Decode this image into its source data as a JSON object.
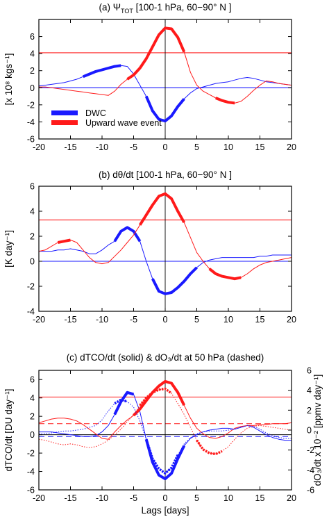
{
  "colors": {
    "blue": "#1a1aff",
    "red": "#ff1a1a",
    "black": "#000000"
  },
  "chart_data": [
    {
      "type": "line",
      "title": "(a) Ψ",
      "title_sub": "TOT",
      "title_rest": " [100-1 hPa, 60−90° N ]",
      "ylabel": "[x 10⁸ kgs⁻¹]",
      "xlabel": "",
      "xlim": [
        -20,
        20
      ],
      "ylim": [
        -6,
        8
      ],
      "xticks": [
        "-20",
        "-15",
        "-10",
        "-5",
        "0",
        "5",
        "10",
        "15",
        "20"
      ],
      "yticks": [
        "-6",
        "-4",
        "-2",
        "0",
        "2",
        "4",
        "6"
      ],
      "hlines": [
        {
          "y": 4.1,
          "color": "red"
        },
        {
          "y": 0,
          "color": "blue"
        }
      ],
      "legend": {
        "placement": "lower-left",
        "entries": [
          {
            "label": "DWC",
            "color": "blue"
          },
          {
            "label": "Upward wave event",
            "color": "red"
          }
        ]
      },
      "series": [
        {
          "color": "blue",
          "x": [
            -20,
            -19,
            -18,
            -17,
            -16,
            -15,
            -14,
            -13,
            -12,
            -11,
            -10,
            -9,
            -8,
            -7,
            -6,
            -5,
            -4,
            -3,
            -2,
            -1,
            0,
            1,
            2,
            3,
            4,
            5,
            6,
            7,
            8,
            9,
            10,
            11,
            12,
            13,
            14,
            15,
            16,
            17,
            18,
            19,
            20
          ],
          "y": [
            0.2,
            0.3,
            0.4,
            0.5,
            0.6,
            0.8,
            1.0,
            1.3,
            1.6,
            1.9,
            2.1,
            2.3,
            2.5,
            2.6,
            2.5,
            1.6,
            0.3,
            -1.0,
            -2.7,
            -3.7,
            -3.9,
            -3.3,
            -2.2,
            -1.3,
            -0.6,
            -0.1,
            0.1,
            0.3,
            0.5,
            0.6,
            0.7,
            0.9,
            1.1,
            1.2,
            1.1,
            0.9,
            0.7,
            0.6,
            0.5,
            0.4,
            0.3
          ],
          "bold_ranges": [
            [
              -13,
              -7
            ],
            [
              -3,
              3
            ]
          ]
        },
        {
          "color": "red",
          "x": [
            -20,
            -19,
            -18,
            -17,
            -16,
            -15,
            -14,
            -13,
            -12,
            -11,
            -10,
            -9,
            -8,
            -7,
            -6,
            -5,
            -4,
            -3,
            -2,
            -1,
            0,
            1,
            2,
            3,
            4,
            5,
            6,
            7,
            8,
            9,
            10,
            11,
            12,
            13,
            14,
            15,
            16,
            17,
            18,
            19,
            20
          ],
          "y": [
            0.1,
            0.1,
            0.0,
            -0.1,
            -0.2,
            -0.3,
            -0.4,
            -0.5,
            -0.6,
            -0.7,
            -0.8,
            -0.9,
            -0.4,
            0.4,
            1.0,
            1.5,
            2.3,
            3.4,
            4.8,
            6.2,
            7.0,
            6.9,
            5.9,
            4.2,
            1.8,
            0.3,
            -0.4,
            -0.8,
            -1.2,
            -1.5,
            -1.7,
            -1.8,
            -1.6,
            -1.0,
            -0.3,
            0.3,
            0.8,
            0.7,
            0.5,
            0.4,
            0.3
          ],
          "bold_ranges": [
            [
              -6,
              3
            ],
            [
              8,
              11
            ]
          ]
        }
      ]
    },
    {
      "type": "line",
      "title": "(b) dθ/dt [100-1 hPa, 60−90° N ]",
      "ylabel": "[K day⁻¹]",
      "xlabel": "",
      "xlim": [
        -20,
        20
      ],
      "ylim": [
        -4,
        6
      ],
      "xticks": [
        "-20",
        "-15",
        "-10",
        "-5",
        "0",
        "5",
        "10",
        "15",
        "20"
      ],
      "yticks": [
        "-4",
        "-2",
        "0",
        "2",
        "4",
        "6"
      ],
      "hlines": [
        {
          "y": 3.3,
          "color": "red"
        },
        {
          "y": 0,
          "color": "blue"
        }
      ],
      "series": [
        {
          "color": "blue",
          "x": [
            -20,
            -19,
            -18,
            -17,
            -16,
            -15,
            -14,
            -13,
            -12,
            -11,
            -10,
            -9,
            -8,
            -7,
            -6,
            -5,
            -4,
            -3,
            -2,
            -1,
            0,
            1,
            2,
            3,
            4,
            5,
            6,
            7,
            8,
            9,
            10,
            11,
            12,
            13,
            14,
            15,
            16,
            17,
            18,
            19,
            20
          ],
          "y": [
            0.8,
            0.8,
            0.8,
            0.9,
            0.9,
            1.0,
            0.9,
            0.8,
            0.6,
            0.6,
            0.9,
            1.3,
            1.6,
            2.4,
            2.7,
            2.4,
            1.6,
            0.0,
            -1.4,
            -2.4,
            -2.6,
            -2.5,
            -2.1,
            -1.6,
            -1.0,
            -0.5,
            -0.1,
            0.1,
            0.2,
            0.3,
            0.3,
            0.3,
            0.3,
            0.3,
            0.3,
            0.4,
            0.4,
            0.5,
            0.5,
            0.5,
            0.5
          ],
          "bold_ranges": [
            [
              -8,
              -4
            ],
            [
              -2,
              5
            ]
          ]
        },
        {
          "color": "red",
          "x": [
            -20,
            -19,
            -18,
            -17,
            -16,
            -15,
            -14,
            -13,
            -12,
            -11,
            -10,
            -9,
            -8,
            -7,
            -6,
            -5,
            -4,
            -3,
            -2,
            -1,
            0,
            1,
            2,
            3,
            4,
            5,
            6,
            7,
            8,
            9,
            10,
            11,
            12,
            13,
            14,
            15,
            16,
            17,
            18,
            19,
            20
          ],
          "y": [
            0.8,
            0.9,
            1.2,
            1.5,
            1.6,
            1.7,
            1.5,
            0.9,
            0.3,
            -0.1,
            -0.2,
            -0.1,
            0.4,
            0.9,
            1.5,
            2.1,
            2.9,
            3.7,
            4.5,
            5.2,
            5.4,
            5.0,
            4.0,
            3.1,
            1.9,
            0.7,
            0.0,
            -0.6,
            -1.0,
            -1.2,
            -1.3,
            -1.4,
            -1.3,
            -1.0,
            -0.6,
            -0.3,
            -0.1,
            0.0,
            0.1,
            0.2,
            0.3
          ],
          "bold_ranges": [
            [
              -17,
              -15
            ],
            [
              -4,
              3
            ],
            [
              7,
              12
            ]
          ]
        }
      ]
    },
    {
      "type": "line",
      "title": "(c) dTCO/dt (solid) & dO₃/dt at 50 hPa (dashed)",
      "ylabel": "dTCO/dt [DU day⁻¹]",
      "y2label": "dO₃/dt x 10⁻² [ppmv day⁻¹]",
      "xlabel": "Lags [days]",
      "xlim": [
        -20,
        20
      ],
      "ylim": [
        -6,
        7
      ],
      "y2lim": [
        -6,
        6
      ],
      "xticks": [
        "-20",
        "-15",
        "-10",
        "-5",
        "0",
        "5",
        "10",
        "15",
        "20"
      ],
      "yticks": [
        "-6",
        "-4",
        "-2",
        "0",
        "2",
        "4",
        "6"
      ],
      "y2ticks": [
        "-6",
        "-4",
        "-2",
        "0",
        "2",
        "4",
        "6"
      ],
      "hlines": [
        {
          "y": 4.1,
          "color": "red",
          "style": "solid"
        },
        {
          "y": 1.2,
          "color": "red",
          "style": "dashed"
        },
        {
          "y": 0,
          "color": "black",
          "style": "solid"
        },
        {
          "y": -0.2,
          "color": "blue",
          "style": "dashed"
        }
      ],
      "series": [
        {
          "color": "blue",
          "style": "solid",
          "x": [
            -20,
            -19,
            -18,
            -17,
            -16,
            -15,
            -14,
            -13,
            -12,
            -11,
            -10,
            -9,
            -8,
            -7,
            -6,
            -5,
            -4,
            -3,
            -2,
            -1,
            0,
            1,
            2,
            3,
            4,
            5,
            6,
            7,
            8,
            9,
            10,
            11,
            12,
            13,
            14,
            15,
            16,
            17,
            18,
            19,
            20
          ],
          "y": [
            0.3,
            0.3,
            0.3,
            0.2,
            0.1,
            0.0,
            -0.1,
            -0.2,
            -0.2,
            -0.1,
            0.3,
            1.0,
            2.2,
            3.6,
            4.6,
            4.4,
            2.5,
            -0.5,
            -3.0,
            -4.4,
            -4.8,
            -4.2,
            -2.6,
            -1.2,
            -0.4,
            0.0,
            0.3,
            0.5,
            0.6,
            0.7,
            0.7,
            0.6,
            0.8,
            1.0,
            0.8,
            0.4,
            0.0,
            -0.3,
            -0.5,
            -0.6,
            -0.6
          ],
          "bold_ranges": [
            [
              -8,
              -5
            ],
            [
              -3,
              3
            ]
          ]
        },
        {
          "color": "red",
          "style": "solid",
          "x": [
            -20,
            -19,
            -18,
            -17,
            -16,
            -15,
            -14,
            -13,
            -12,
            -11,
            -10,
            -9,
            -8,
            -7,
            -6,
            -5,
            -4,
            -3,
            -2,
            -1,
            0,
            1,
            2,
            3,
            4,
            5,
            6,
            7,
            8,
            9,
            10,
            11,
            12,
            13,
            14,
            15,
            16,
            17,
            18,
            19,
            20
          ],
          "y": [
            1.3,
            1.5,
            1.7,
            1.8,
            1.8,
            1.7,
            1.5,
            1.1,
            0.6,
            0.1,
            -0.4,
            -0.5,
            0.3,
            1.0,
            1.6,
            2.1,
            2.8,
            3.7,
            4.6,
            5.3,
            5.8,
            5.6,
            4.6,
            3.2,
            1.8,
            0.7,
            0.1,
            -0.3,
            -0.4,
            -0.2,
            0.2,
            0.7,
            0.9,
            1.0,
            1.0,
            1.1,
            1.1,
            1.2,
            1.2,
            1.2,
            1.3
          ],
          "bold_ranges": [
            [
              -5,
              3
            ]
          ]
        },
        {
          "color": "blue",
          "style": "dotted",
          "x": [
            -20,
            -19,
            -18,
            -17,
            -16,
            -15,
            -14,
            -13,
            -12,
            -11,
            -10,
            -9,
            -8,
            -7,
            -6,
            -5,
            -4,
            -3,
            -2,
            -1,
            0,
            1,
            2,
            3,
            4,
            5,
            6,
            7,
            8,
            9,
            10,
            11,
            12,
            13,
            14,
            15,
            16,
            17,
            18,
            19,
            20
          ],
          "y": [
            0.1,
            0.1,
            0.2,
            0.3,
            0.4,
            0.4,
            0.5,
            0.6,
            0.8,
            1.0,
            1.6,
            2.6,
            3.4,
            3.8,
            3.6,
            3.0,
            1.5,
            -0.5,
            -2.6,
            -3.7,
            -4.2,
            -3.6,
            -2.2,
            -1.0,
            -0.3,
            0.1,
            0.3,
            0.4,
            0.4,
            0.4,
            0.5,
            0.6,
            0.8,
            1.0,
            0.9,
            0.6,
            0.2,
            -0.1,
            -0.3,
            -0.4,
            -0.4
          ],
          "bold_ranges": [
            [
              -8,
              -6
            ],
            [
              -3,
              2
            ]
          ]
        },
        {
          "color": "red",
          "style": "dotted",
          "x": [
            -20,
            -19,
            -18,
            -17,
            -16,
            -15,
            -14,
            -13,
            -12,
            -11,
            -10,
            -9,
            -8,
            -7,
            -6,
            -5,
            -4,
            -3,
            -2,
            -1,
            0,
            1,
            2,
            3,
            4,
            5,
            6,
            7,
            8,
            9,
            10,
            11,
            12,
            13,
            14,
            15,
            16,
            17,
            18,
            19,
            20
          ],
          "y": [
            -0.5,
            -0.6,
            -0.8,
            -1.0,
            -1.1,
            -1.0,
            -1.1,
            -1.3,
            -1.4,
            -1.3,
            -1.0,
            -0.6,
            0.0,
            0.6,
            1.4,
            2.2,
            3.2,
            4.0,
            4.6,
            4.9,
            5.0,
            4.5,
            3.4,
            2.2,
            0.8,
            -0.6,
            -1.6,
            -2.0,
            -2.1,
            -1.8,
            -1.3,
            -0.5,
            0.2,
            0.7,
            0.9,
            1.0,
            0.9,
            0.8,
            0.7,
            0.6,
            0.5
          ],
          "bold_ranges": [
            [
              -4,
              1
            ],
            [
              5,
              9
            ]
          ]
        }
      ]
    }
  ]
}
